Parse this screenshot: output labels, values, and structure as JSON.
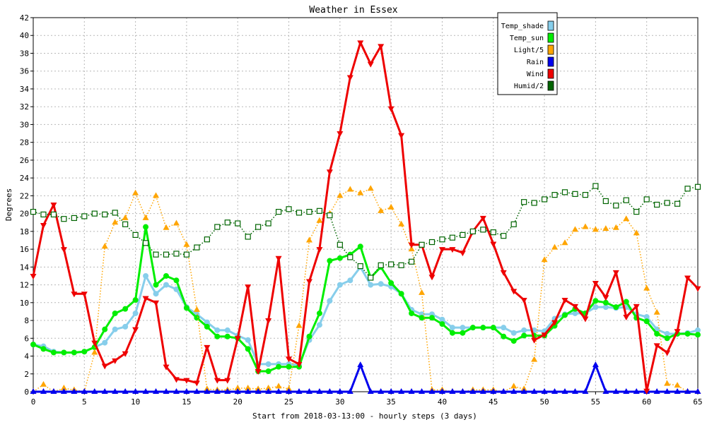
{
  "chart_data": {
    "type": "line",
    "title": "Weather in Essex",
    "xlabel": "Start from 2018-03-13:00 - hourly steps (3 days)",
    "ylabel": "Degrees",
    "xlim": [
      0,
      65
    ],
    "ylim": [
      0,
      42
    ],
    "x_ticks": [
      0,
      5,
      10,
      15,
      20,
      25,
      30,
      35,
      40,
      45,
      50,
      55,
      60,
      65
    ],
    "y_ticks": [
      0,
      2,
      4,
      6,
      8,
      10,
      12,
      14,
      16,
      18,
      20,
      22,
      24,
      26,
      28,
      30,
      32,
      34,
      36,
      38,
      40,
      42
    ],
    "grid": true,
    "legend_position": "top-right",
    "series": [
      {
        "name": "Temp_shade",
        "color": "#87ceeb",
        "marker": "circle",
        "line_style": "solid",
        "values": [
          5.3,
          5.1,
          4.5,
          4.4,
          4.4,
          4.5,
          5.0,
          5.5,
          7.0,
          7.3,
          8.8,
          13.0,
          11.0,
          12.0,
          11.5,
          9.5,
          8.7,
          7.8,
          6.9,
          6.9,
          6.3,
          5.8,
          3.1,
          3.1,
          3.1,
          3.1,
          3.0,
          5.8,
          7.5,
          10.2,
          12.0,
          12.5,
          14.0,
          12.0,
          12.1,
          11.8,
          11.0,
          9.2,
          8.7,
          8.7,
          8.1,
          7.2,
          7.2,
          7.2,
          7.2,
          7.2,
          7.2,
          6.6,
          6.9,
          6.9,
          6.8,
          8.2,
          8.7,
          8.8,
          8.8,
          9.5,
          9.5,
          9.4,
          9.5,
          8.7,
          8.4,
          7.0,
          6.5,
          6.5,
          6.6,
          6.9
        ]
      },
      {
        "name": "Temp_sun",
        "color": "#00ee00",
        "marker": "circle",
        "line_style": "solid",
        "values": [
          5.3,
          4.8,
          4.4,
          4.4,
          4.4,
          4.5,
          5.0,
          7.0,
          8.8,
          9.3,
          10.3,
          18.5,
          12.0,
          13.0,
          12.5,
          9.4,
          8.3,
          7.3,
          6.2,
          6.2,
          6.0,
          4.8,
          2.3,
          2.3,
          2.8,
          2.8,
          2.8,
          6.2,
          8.8,
          14.7,
          15.0,
          15.4,
          16.3,
          12.8,
          14.0,
          12.2,
          11.0,
          8.8,
          8.3,
          8.3,
          7.6,
          6.6,
          6.6,
          7.2,
          7.2,
          7.2,
          6.2,
          5.7,
          6.3,
          6.3,
          6.3,
          7.4,
          8.6,
          9.3,
          8.8,
          10.2,
          10.0,
          9.5,
          10.1,
          8.3,
          7.9,
          6.5,
          6.0,
          6.5,
          6.5,
          6.4
        ]
      },
      {
        "name": "Light/5",
        "color": "#ffa500",
        "marker": "triangle-up",
        "line_style": "dotted",
        "values": [
          0,
          0.8,
          0,
          0.4,
          0.2,
          0,
          4.4,
          16.3,
          19.0,
          19.5,
          22.3,
          19.5,
          22.0,
          18.4,
          18.9,
          16.5,
          9.2,
          0.3,
          0.2,
          0.2,
          0.4,
          0.4,
          0.3,
          0.4,
          0.6,
          0.3,
          7.4,
          17.0,
          19.2,
          20.0,
          22.0,
          22.7,
          22.3,
          22.8,
          20.3,
          20.7,
          18.8,
          16.0,
          11.1,
          0.2,
          0.2,
          0,
          0,
          0.2,
          0.2,
          0.2,
          0,
          0.6,
          0.3,
          3.6,
          14.8,
          16.2,
          16.7,
          18.2,
          18.5,
          18.2,
          18.3,
          18.4,
          19.4,
          17.8,
          11.6,
          8.9,
          0.9,
          0.7,
          0,
          0
        ]
      },
      {
        "name": "Rain",
        "color": "#0000ee",
        "marker": "triangle-up",
        "line_style": "solid",
        "values": [
          0,
          0,
          0,
          0,
          0,
          0,
          0,
          0,
          0,
          0,
          0,
          0,
          0,
          0,
          0,
          0,
          0,
          0,
          0,
          0,
          0,
          0,
          0,
          0,
          0,
          0,
          0,
          0,
          0,
          0,
          0,
          0,
          3.0,
          0,
          0,
          0,
          0,
          0,
          0,
          0,
          0,
          0,
          0,
          0,
          0,
          0,
          0,
          0,
          0,
          0,
          0,
          0,
          0,
          0,
          0,
          3.0,
          0,
          0,
          0,
          0,
          0,
          0,
          0,
          0,
          0,
          0
        ]
      },
      {
        "name": "Wind",
        "color": "#ee0000",
        "marker": "triangle-down",
        "line_style": "solid",
        "values": [
          13.0,
          18.7,
          21.0,
          16.0,
          11.0,
          11.0,
          5.5,
          2.9,
          3.5,
          4.3,
          7.0,
          10.5,
          10.0,
          2.8,
          1.4,
          1.3,
          1.0,
          5.0,
          1.3,
          1.3,
          6.0,
          11.8,
          2.3,
          8.0,
          15.0,
          3.7,
          3.1,
          12.4,
          16.0,
          24.7,
          29.0,
          35.3,
          39.2,
          36.8,
          38.8,
          31.8,
          28.8,
          16.5,
          16.5,
          12.9,
          16.0,
          16.0,
          15.6,
          18.0,
          19.5,
          16.6,
          13.4,
          11.3,
          10.3,
          5.8,
          6.4,
          7.8,
          10.3,
          9.6,
          8.2,
          12.2,
          10.6,
          13.4,
          8.4,
          9.6,
          0.1,
          5.2,
          4.4,
          6.8,
          12.8,
          11.6
        ]
      },
      {
        "name": "Humid/2",
        "color": "#006400",
        "marker": "square",
        "line_style": "dotted",
        "values": [
          20.2,
          19.9,
          19.9,
          19.4,
          19.5,
          19.7,
          20.0,
          19.9,
          20.1,
          18.8,
          17.6,
          16.7,
          15.4,
          15.4,
          15.5,
          15.4,
          16.2,
          17.1,
          18.5,
          19.0,
          18.9,
          17.4,
          18.5,
          18.9,
          20.2,
          20.5,
          20.1,
          20.2,
          20.3,
          19.8,
          16.5,
          15.1,
          14.1,
          12.8,
          14.2,
          14.3,
          14.2,
          14.6,
          16.5,
          16.8,
          17.1,
          17.3,
          17.6,
          18.0,
          18.2,
          17.9,
          17.5,
          18.8,
          21.3,
          21.2,
          21.6,
          22.1,
          22.4,
          22.2,
          22.1,
          23.1,
          21.4,
          20.9,
          21.5,
          20.2,
          21.6,
          21.0,
          21.2,
          21.1,
          22.8,
          23.0
        ]
      }
    ]
  }
}
